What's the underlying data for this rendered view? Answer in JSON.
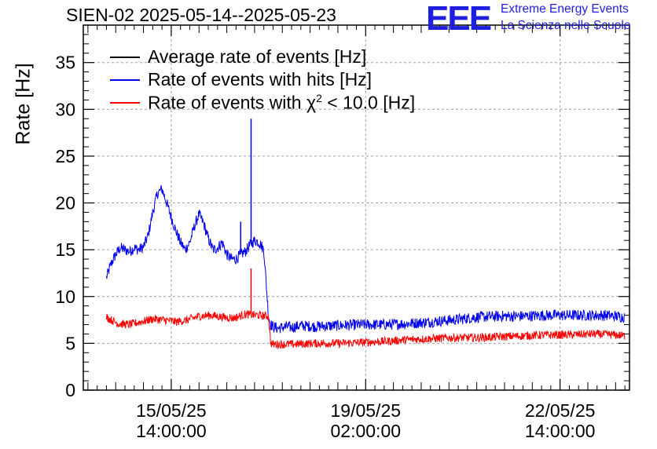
{
  "header": {
    "title": "SIEN-02 2025-05-14--2025-05-23",
    "logo_text": "EEE",
    "brand_line1": "Extreme Energy Events",
    "brand_line2": "La Scienza nelle Scuole"
  },
  "legend": {
    "avg": "Average rate of events [Hz]",
    "hits": "Rate of events with hits [Hz]",
    "chi_prefix": "Rate of events with ",
    "chi_symbol": "χ",
    "chi_exp": "2",
    "chi_suffix": " < 10.0 [Hz]"
  },
  "colors": {
    "avg": "#000000",
    "hits": "#0000ee",
    "chi": "#ff0000",
    "brand": "#1f1fe0",
    "grid": "#a0a0a0"
  },
  "chart_data": {
    "type": "line",
    "title": "SIEN-02 2025-05-14--2025-05-23",
    "xlabel": "",
    "ylabel": "Rate [Hz]",
    "x_unit": "hours since 2025-05-14 00:00",
    "xlim": [
      0,
      236
    ],
    "ylim": [
      0,
      39
    ],
    "yticks": [
      0,
      5,
      10,
      15,
      20,
      25,
      30,
      35
    ],
    "xticks": [
      {
        "x": 38,
        "label1": "15/05/25",
        "label2": "14:00:00"
      },
      {
        "x": 122,
        "label1": "19/05/25",
        "label2": "02:00:00"
      },
      {
        "x": 206,
        "label1": "22/05/25",
        "label2": "14:00:00"
      }
    ],
    "grid": true,
    "series": [
      {
        "name": "Rate of events with hits [Hz]",
        "key": "hits",
        "x": [
          10,
          12,
          14,
          16,
          18,
          20,
          22,
          24,
          26,
          28,
          30,
          32,
          34,
          36,
          38,
          40,
          42,
          44,
          46,
          48,
          50,
          52,
          54,
          56,
          58,
          60,
          62,
          64,
          66,
          68,
          70,
          72,
          74,
          76,
          78,
          80,
          81,
          82,
          84,
          86,
          88,
          90,
          92,
          94,
          100,
          110,
          120,
          130,
          140,
          150,
          160,
          170,
          180,
          190,
          200,
          210,
          220,
          226,
          230,
          234
        ],
        "y": [
          12.0,
          13.5,
          14.5,
          15.2,
          15.0,
          14.8,
          15.2,
          15.0,
          15.3,
          16.5,
          19.0,
          21.0,
          21.5,
          20.0,
          18.5,
          17.0,
          15.8,
          15.0,
          15.8,
          17.5,
          18.8,
          17.8,
          16.2,
          15.0,
          15.2,
          15.8,
          14.5,
          14.0,
          14.0,
          14.5,
          14.8,
          15.5,
          16.0,
          15.8,
          15.0,
          8.0,
          7.0,
          6.8,
          6.6,
          6.7,
          6.8,
          6.7,
          6.8,
          6.9,
          6.8,
          6.9,
          7.0,
          7.0,
          7.1,
          7.3,
          7.5,
          7.8,
          7.9,
          7.9,
          8.0,
          8.0,
          8.0,
          8.0,
          7.9,
          7.8
        ],
        "spikes": [
          {
            "x": 72.5,
            "y": 29.0
          },
          {
            "x": 68,
            "y": 18.0
          }
        ],
        "noise": 0.6
      },
      {
        "name": "Rate of events with χ² < 10.0 [Hz]",
        "key": "chi",
        "x": [
          10,
          15,
          20,
          25,
          30,
          35,
          40,
          45,
          50,
          55,
          60,
          65,
          70,
          75,
          80,
          81,
          82,
          90,
          100,
          110,
          120,
          130,
          140,
          150,
          160,
          170,
          180,
          190,
          200,
          210,
          220,
          230,
          234
        ],
        "y": [
          7.8,
          7.1,
          7.0,
          7.3,
          7.6,
          7.5,
          7.3,
          7.5,
          7.9,
          8.0,
          7.8,
          7.7,
          8.1,
          8.0,
          7.9,
          5.0,
          4.9,
          4.9,
          5.0,
          5.0,
          5.1,
          5.2,
          5.4,
          5.5,
          5.6,
          5.6,
          5.7,
          5.8,
          5.9,
          5.9,
          6.0,
          5.9,
          5.8
        ],
        "spikes": [
          {
            "x": 72.5,
            "y": 13.0
          }
        ],
        "noise": 0.45
      },
      {
        "name": "Average rate of events [Hz]",
        "key": "avg",
        "x": [],
        "y": []
      }
    ]
  }
}
